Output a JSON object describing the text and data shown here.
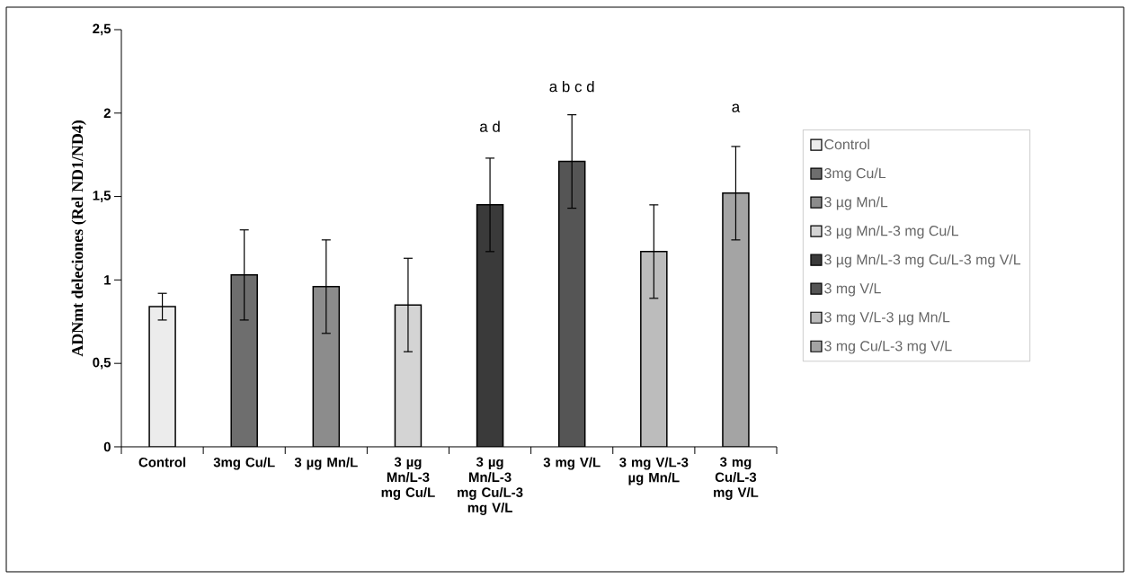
{
  "chart_data": {
    "type": "bar",
    "ylabel": "ADNmt deleciones (Rel ND1/ND4)",
    "categories": [
      "Control",
      "3mg Cu/L",
      "3 µg Mn/L",
      "3 µg Mn/L-3 mg Cu/L",
      "3 µg Mn/L-3 mg Cu/L-3 mg V/L",
      "3 mg V/L",
      "3 mg V/L-3 µg Mn/L",
      "3 mg Cu/L-3 mg V/L"
    ],
    "series": [
      {
        "name": "Control",
        "color": "#ececec",
        "values": [
          0.84,
          null,
          null,
          null,
          null,
          null,
          null,
          null
        ],
        "errors": [
          0.08,
          null,
          null,
          null,
          null,
          null,
          null,
          null
        ]
      },
      {
        "name": "3mg Cu/L",
        "color": "#6e6e6e",
        "values": [
          null,
          1.03,
          null,
          null,
          null,
          null,
          null,
          null
        ],
        "errors": [
          null,
          0.27,
          null,
          null,
          null,
          null,
          null,
          null
        ]
      },
      {
        "name": "3 µg Mn/L",
        "color": "#8c8c8c",
        "values": [
          null,
          null,
          0.96,
          null,
          null,
          null,
          null,
          null
        ],
        "errors": [
          null,
          null,
          0.28,
          null,
          null,
          null,
          null,
          null
        ]
      },
      {
        "name": "3 µg Mn/L-3 mg Cu/L",
        "color": "#d4d4d4",
        "values": [
          null,
          null,
          null,
          0.85,
          null,
          null,
          null,
          null
        ],
        "errors": [
          null,
          null,
          null,
          0.28,
          null,
          null,
          null,
          null
        ]
      },
      {
        "name": "3 µg Mn/L-3 mg Cu/L-3 mg V/L",
        "color": "#3a3a3a",
        "values": [
          null,
          null,
          null,
          null,
          1.45,
          null,
          null,
          null
        ],
        "errors": [
          null,
          null,
          null,
          null,
          0.28,
          null,
          null,
          null
        ]
      },
      {
        "name": "3 mg V/L",
        "color": "#555555",
        "values": [
          null,
          null,
          null,
          null,
          null,
          1.71,
          null,
          null
        ],
        "errors": [
          null,
          null,
          null,
          null,
          null,
          0.28,
          null,
          null
        ]
      },
      {
        "name": "3 mg V/L-3 µg Mn/L",
        "color": "#bcbcbc",
        "values": [
          null,
          null,
          null,
          null,
          null,
          null,
          1.17,
          null
        ],
        "errors": [
          null,
          null,
          null,
          null,
          null,
          null,
          0.28,
          null
        ]
      },
      {
        "name": "3 mg Cu/L-3 mg V/L",
        "color": "#a4a4a4",
        "values": [
          null,
          null,
          null,
          null,
          null,
          null,
          null,
          1.52
        ],
        "errors": [
          null,
          null,
          null,
          null,
          null,
          null,
          null,
          0.28
        ]
      }
    ],
    "ylim": [
      0,
      2.5
    ],
    "yticks": [
      0,
      {
        "value": 0.5,
        "label": "0,5"
      },
      1,
      {
        "value": 1.5,
        "label": "1,5"
      },
      2,
      {
        "value": 2.5,
        "label": "2,5"
      }
    ],
    "annotations": [
      "a d",
      "a b c d",
      "a"
    ],
    "legend": "right",
    "grid": false
  }
}
